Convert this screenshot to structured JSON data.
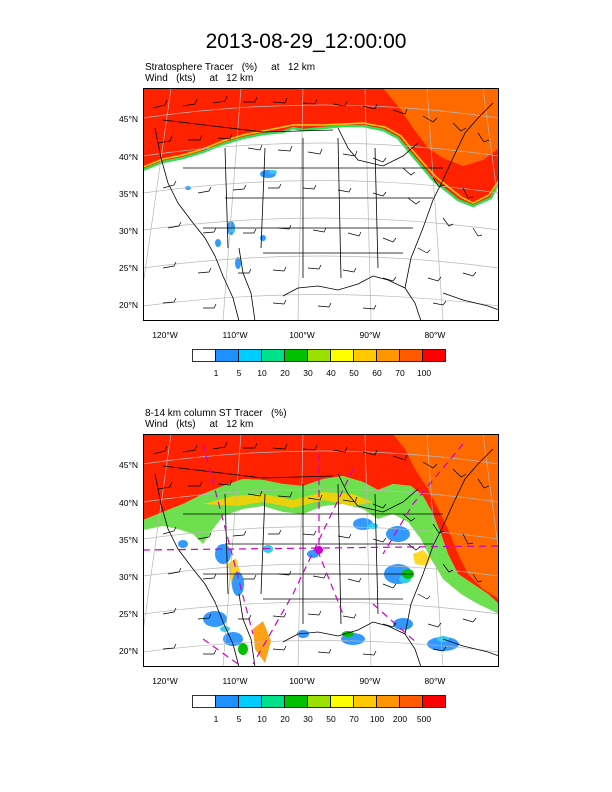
{
  "title": "2013-08-29_12:00:00",
  "panels": [
    {
      "subtitle_line1": "Stratosphere Tracer   (%)     at   12 km",
      "subtitle_line2": "Wind   (kts)     at   12 km",
      "lat_labels": [
        "45°N",
        "40°N",
        "35°N",
        "30°N",
        "25°N",
        "20°N"
      ],
      "lon_labels": [
        "120°W",
        "110°W",
        "100°W",
        "90°W",
        "80°W"
      ],
      "legend_labels": [
        "1",
        "5",
        "10",
        "20",
        "30",
        "40",
        "50",
        "60",
        "70",
        "100"
      ]
    },
    {
      "subtitle_line1": "8-14 km column ST Tracer   (%)",
      "subtitle_line2": "Wind   (kts)     at   12 km",
      "lat_labels": [
        "45°N",
        "40°N",
        "35°N",
        "30°N",
        "25°N",
        "20°N"
      ],
      "lon_labels": [
        "120°W",
        "110°W",
        "100°W",
        "90°W",
        "80°W"
      ],
      "legend_labels": [
        "1",
        "5",
        "10",
        "20",
        "30",
        "50",
        "70",
        "100",
        "200",
        "500"
      ]
    }
  ],
  "legend_colors": [
    "#ffffff",
    "#1e90ff",
    "#00cdff",
    "#00e08a",
    "#00c000",
    "#9be000",
    "#ffff00",
    "#ffc800",
    "#ff9600",
    "#ff5a00",
    "#ff0000"
  ],
  "tracer_colors": {
    "high": "#ff2200",
    "mid": "#ff6a00",
    "edge_yellow": "#ffd000",
    "edge_green": "#33dd55",
    "blue": "#3399ff",
    "cyan": "#33ccee",
    "green": "#66dd44"
  },
  "trajectory_color": "#cc00cc"
}
